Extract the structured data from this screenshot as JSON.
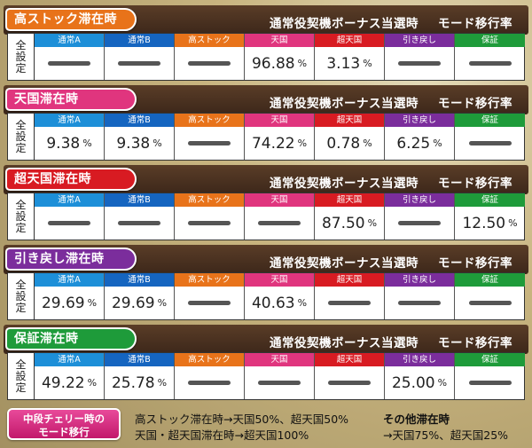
{
  "columns": [
    "通常A",
    "通常B",
    "高ストック",
    "天国",
    "超天国",
    "引き戻し",
    "保証"
  ],
  "column_colors": [
    "#1d8fd8",
    "#1565c0",
    "#e8731a",
    "#e0357e",
    "#d81b22",
    "#7b2d9c",
    "#1e9b3a"
  ],
  "header_title_left": "通常役契機ボーナス当選時",
  "header_title_right": "モード移行率",
  "all_settings_label": [
    "全",
    "設",
    "定"
  ],
  "pct_unit": "%",
  "sections": [
    {
      "label": "高ストック滞在時",
      "tag_color": "#e8731a",
      "values": [
        null,
        null,
        null,
        "96.88",
        "3.13",
        null,
        null
      ]
    },
    {
      "label": "天国滞在時",
      "tag_color": "#e0357e",
      "values": [
        "9.38",
        "9.38",
        null,
        "74.22",
        "0.78",
        "6.25",
        null
      ]
    },
    {
      "label": "超天国滞在時",
      "tag_color": "#d81b22",
      "values": [
        null,
        null,
        null,
        null,
        "87.50",
        null,
        "12.50"
      ]
    },
    {
      "label": "引き戻し滞在時",
      "tag_color": "#7b2d9c",
      "values": [
        "29.69",
        "29.69",
        null,
        "40.63",
        null,
        null,
        null
      ]
    },
    {
      "label": "保証滞在時",
      "tag_color": "#1e9b3a",
      "values": [
        "49.22",
        "25.78",
        null,
        null,
        null,
        "25.00",
        null
      ]
    }
  ],
  "footer": {
    "tag_line1": "中段チェリー時の",
    "tag_line2": "モード移行",
    "left_line1": "高ストック滞在時→天国50%、超天国50%",
    "left_line2": "天国・超天国滞在時→超天国100%",
    "right_line1": "その他滞在時",
    "right_line2": "→天国75%、超天国25%"
  }
}
